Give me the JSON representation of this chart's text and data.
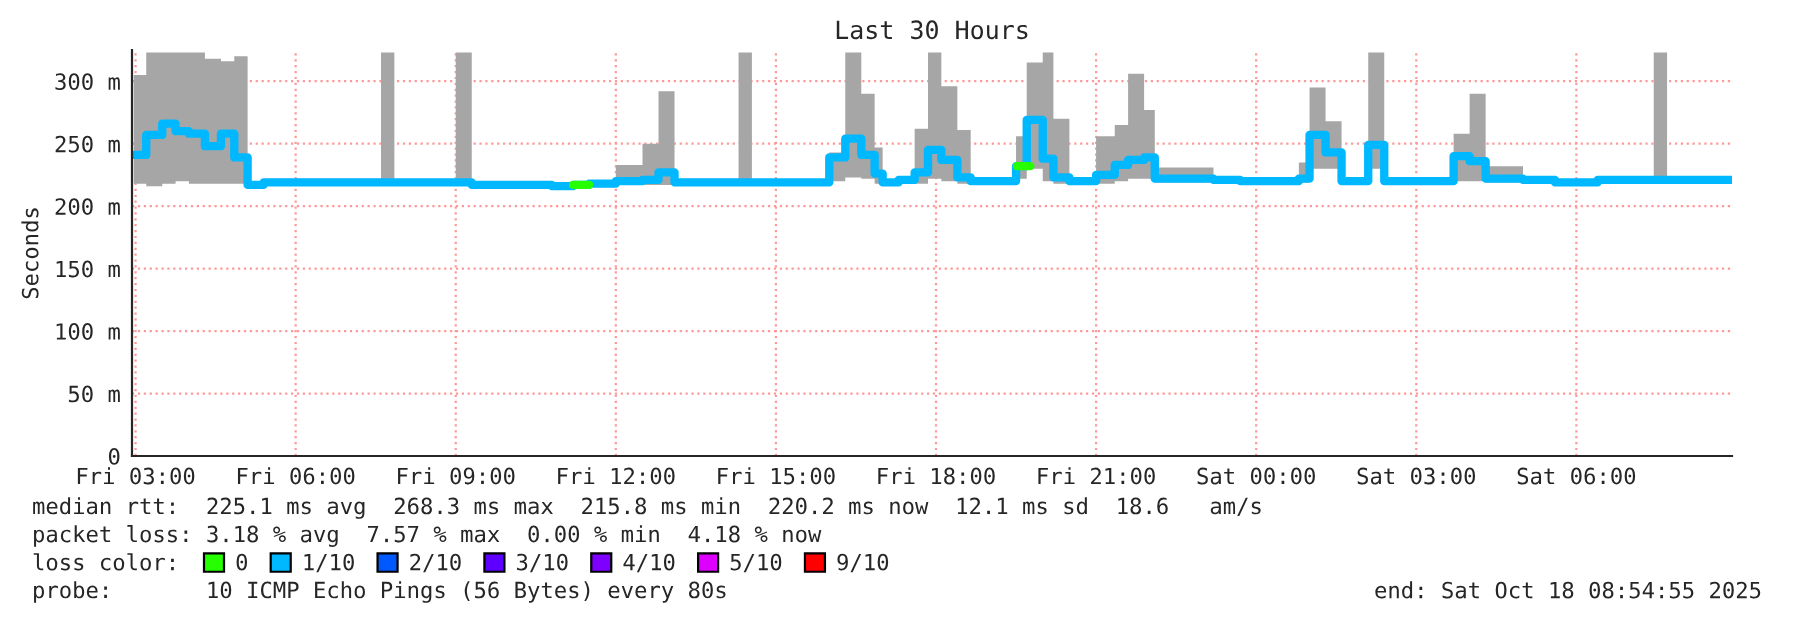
{
  "chart_data": {
    "type": "step",
    "title": "Last 30 Hours",
    "ylabel": "Seconds",
    "legend_title": "loss color:",
    "xlim": [
      "2025-10-17T02:56",
      "2025-10-18T08:55"
    ],
    "xticks": [
      {
        "value": "2025-10-17T03:00",
        "label": "Fri 03:00"
      },
      {
        "value": "2025-10-17T06:00",
        "label": "Fri 06:00"
      },
      {
        "value": "2025-10-17T09:00",
        "label": "Fri 09:00"
      },
      {
        "value": "2025-10-17T12:00",
        "label": "Fri 12:00"
      },
      {
        "value": "2025-10-17T15:00",
        "label": "Fri 15:00"
      },
      {
        "value": "2025-10-17T18:00",
        "label": "Fri 18:00"
      },
      {
        "value": "2025-10-17T21:00",
        "label": "Fri 21:00"
      },
      {
        "value": "2025-10-18T00:00",
        "label": "Sat 00:00"
      },
      {
        "value": "2025-10-18T03:00",
        "label": "Sat 03:00"
      },
      {
        "value": "2025-10-18T06:00",
        "label": "Sat 06:00"
      }
    ],
    "ylim": [
      0,
      325
    ],
    "yticks": [
      0,
      {
        "value": 50,
        "label": "50 m"
      },
      {
        "value": 100,
        "label": "100 m"
      },
      {
        "value": 150,
        "label": "150 m"
      },
      {
        "value": 200,
        "label": "200 m"
      },
      {
        "value": 250,
        "label": "250 m"
      },
      {
        "value": 300,
        "label": "300 m"
      }
    ],
    "grid": true,
    "legend": "bottom",
    "marker": "none",
    "line_style": "solid",
    "series": [
      {
        "name": "0",
        "color": "#26ff00",
        "x": [
          "2025-10-17T11:12",
          "2025-10-17T11:30"
        ],
        "values": [
          217,
          217
        ]
      },
      {
        "color": "#26ff00",
        "x": [
          "2025-10-17T19:31",
          "2025-10-17T19:46"
        ],
        "values": [
          232,
          232
        ]
      },
      {
        "name": "1/10",
        "color": "#00b8ff",
        "x": [
          "2025-10-17T02:58",
          "2025-10-17T03:12",
          "2025-10-17T03:30",
          "2025-10-17T03:45",
          "2025-10-17T04:00",
          "2025-10-17T04:18",
          "2025-10-17T04:36",
          "2025-10-17T04:51",
          "2025-10-17T05:06",
          "2025-10-17T05:24",
          "2025-10-17T07:36",
          "2025-10-17T07:51",
          "2025-10-17T09:00",
          "2025-10-17T09:18",
          "2025-10-17T10:48",
          "2025-10-17T11:12",
          "2025-10-17T11:30",
          "2025-10-17T12:00",
          "2025-10-17T12:30",
          "2025-10-17T12:48",
          "2025-10-17T13:06",
          "2025-10-17T14:18",
          "2025-10-17T14:33",
          "2025-10-17T16:00",
          "2025-10-17T16:18",
          "2025-10-17T16:36",
          "2025-10-17T16:51",
          "2025-10-17T17:00",
          "2025-10-17T17:18",
          "2025-10-17T17:36",
          "2025-10-17T17:51",
          "2025-10-17T18:06",
          "2025-10-17T18:24",
          "2025-10-17T18:39",
          "2025-10-17T19:30",
          "2025-10-17T19:42",
          "2025-10-17T20:00",
          "2025-10-17T20:12",
          "2025-10-17T20:30",
          "2025-10-17T21:00",
          "2025-10-17T21:21",
          "2025-10-17T21:36",
          "2025-10-17T21:54",
          "2025-10-17T22:06",
          "2025-10-17T23:12",
          "2025-10-17T23:42",
          "2025-10-18T00:48",
          "2025-10-18T01:00",
          "2025-10-18T01:18",
          "2025-10-18T01:36",
          "2025-10-18T02:06",
          "2025-10-18T02:24",
          "2025-10-18T03:42",
          "2025-10-18T04:00",
          "2025-10-18T04:18",
          "2025-10-18T05:00",
          "2025-10-18T05:36",
          "2025-10-18T06:24",
          "2025-10-18T07:27",
          "2025-10-18T07:42",
          "2025-10-18T08:54"
        ],
        "values": [
          241,
          257,
          266,
          260,
          258,
          248,
          258,
          239,
          217,
          219,
          219,
          219,
          219,
          217,
          216,
          217,
          218,
          220,
          221,
          227,
          219,
          219,
          219,
          239,
          254,
          241,
          226,
          219,
          221,
          227,
          245,
          237,
          223,
          220,
          232,
          269,
          238,
          223,
          220,
          225,
          233,
          237,
          239,
          222,
          221,
          220,
          222,
          257,
          243,
          220,
          249,
          220,
          240,
          236,
          222,
          221,
          219,
          221,
          221,
          221,
          221
        ],
        "lower": [
          218,
          216,
          218,
          220,
          218,
          218,
          218,
          218,
          215,
          217,
          217,
          217,
          217,
          215,
          214,
          215,
          216,
          217,
          217,
          217,
          217,
          217,
          217,
          220,
          223,
          222,
          218,
          217,
          218,
          218,
          222,
          220,
          218,
          218,
          222,
          230,
          220,
          218,
          218,
          218,
          220,
          222,
          222,
          219,
          219,
          218,
          219,
          230,
          230,
          218,
          230,
          218,
          220,
          220,
          219,
          219,
          217,
          219,
          219,
          219,
          219
        ],
        "upper": [
          305,
          323,
          323,
          323,
          323,
          318,
          316,
          320,
          219,
          222,
          323,
          221,
          323,
          220,
          219,
          220,
          221,
          233,
          250,
          292,
          222,
          323,
          221,
          243,
          323,
          290,
          247,
          221,
          224,
          262,
          323,
          296,
          261,
          222,
          256,
          315,
          323,
          270,
          222,
          256,
          265,
          306,
          277,
          231,
          223,
          222,
          235,
          295,
          268,
          222,
          323,
          222,
          258,
          290,
          232,
          223,
          221,
          223,
          323,
          223,
          223
        ]
      },
      {
        "name": "2/10",
        "color": "#0059ff"
      },
      {
        "name": "3/10",
        "color": "#5e00ff"
      },
      {
        "name": "4/10",
        "color": "#7e00ff"
      },
      {
        "name": "5/10",
        "color": "#dd00ff"
      },
      {
        "name": "9/10",
        "color": "#ff0000"
      }
    ],
    "annotations": [
      "median rtt:  225.1 ms avg  268.3 ms max  215.8 ms min  220.2 ms now  12.1 ms sd  18.6   am/s",
      "packet loss: 3.18 % avg  7.57 % max  0.00 % min  4.18 % now",
      "probe:       10 ICMP Echo Pings (56 Bytes) every 80s",
      "end: Sat Oct 18 08:54:55 2025"
    ]
  }
}
